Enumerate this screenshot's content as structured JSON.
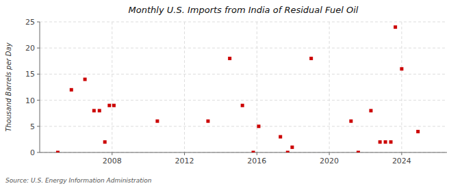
{
  "chart_data": {
    "type": "scatter",
    "title": "Monthly U.S. Imports from India of Residual Fuel Oil",
    "ylabel": "Thousand Barrels per Day",
    "source": "Source: U.S. Energy Information Administration",
    "x": [
      2005.0,
      2005.75,
      2006.5,
      2007.0,
      2007.3,
      2007.6,
      2007.85,
      2008.1,
      2010.5,
      2013.3,
      2014.5,
      2015.2,
      2015.8,
      2016.1,
      2017.3,
      2017.7,
      2017.95,
      2019.0,
      2021.2,
      2021.6,
      2022.3,
      2022.8,
      2023.1,
      2023.4,
      2023.65,
      2024.0,
      2024.9
    ],
    "values": [
      0,
      12,
      14,
      8,
      8,
      2,
      9,
      9,
      6,
      6,
      18,
      9,
      0,
      5,
      3,
      0,
      1,
      18,
      6,
      0,
      8,
      2,
      2,
      2,
      24,
      16,
      4
    ],
    "color": "#cc0000",
    "marker": "square",
    "xlim": [
      2004.0,
      2026.5
    ],
    "ylim": [
      0,
      25
    ],
    "xticks": [
      2008,
      2012,
      2016,
      2020,
      2024
    ],
    "yticks": [
      0,
      5,
      10,
      15,
      20,
      25
    ],
    "grid": true
  }
}
